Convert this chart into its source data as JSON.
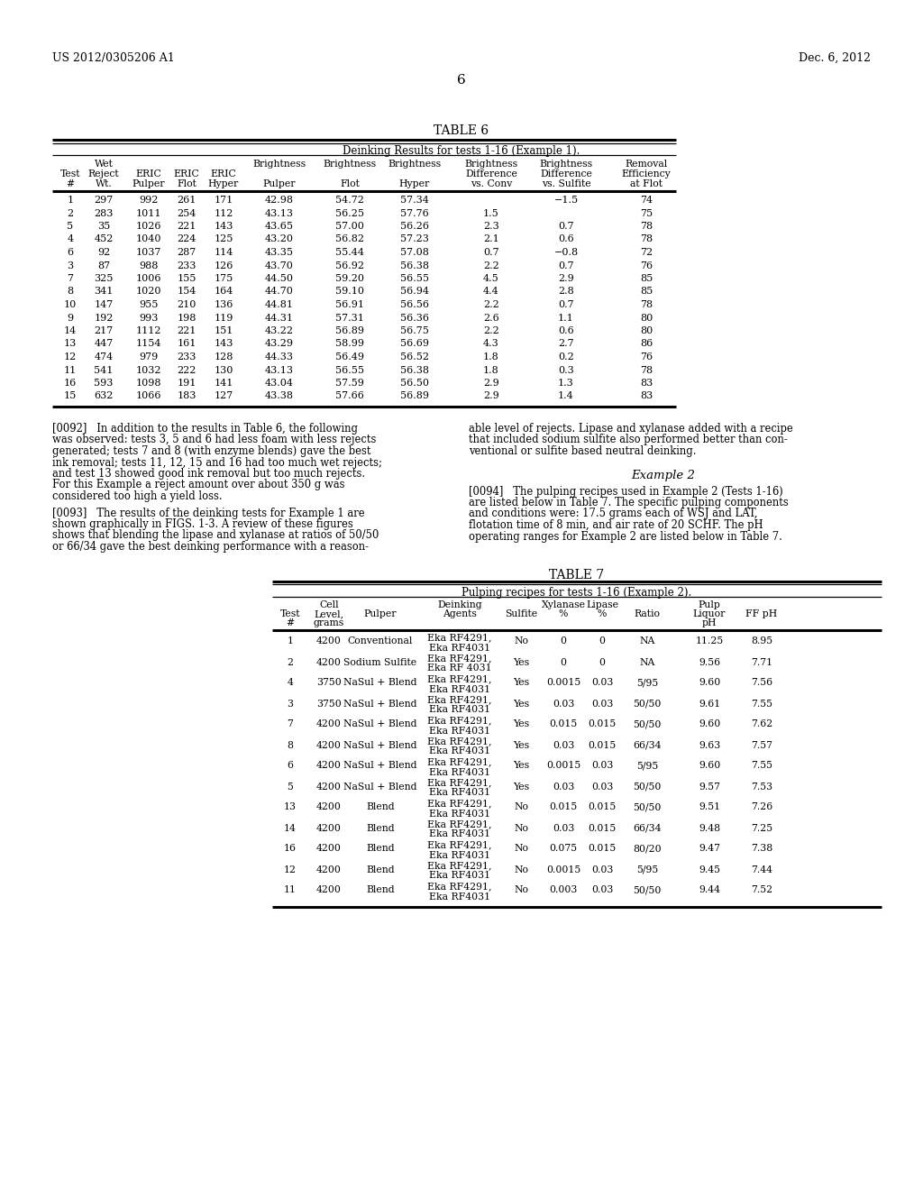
{
  "header_left": "US 2012/0305206 A1",
  "header_right": "Dec. 6, 2012",
  "page_number": "6",
  "table6_title": "TABLE 6",
  "table6_subtitle": "Deinking Results for tests 1-16 (Example 1).",
  "table6_data": [
    [
      "1",
      "297",
      "992",
      "261",
      "171",
      "42.98",
      "54.72",
      "57.34",
      "",
      "−1.5",
      "74"
    ],
    [
      "2",
      "283",
      "1011",
      "254",
      "112",
      "43.13",
      "56.25",
      "57.76",
      "1.5",
      "",
      "75"
    ],
    [
      "5",
      "35",
      "1026",
      "221",
      "143",
      "43.65",
      "57.00",
      "56.26",
      "2.3",
      "0.7",
      "78"
    ],
    [
      "4",
      "452",
      "1040",
      "224",
      "125",
      "43.20",
      "56.82",
      "57.23",
      "2.1",
      "0.6",
      "78"
    ],
    [
      "6",
      "92",
      "1037",
      "287",
      "114",
      "43.35",
      "55.44",
      "57.08",
      "0.7",
      "−0.8",
      "72"
    ],
    [
      "3",
      "87",
      "988",
      "233",
      "126",
      "43.70",
      "56.92",
      "56.38",
      "2.2",
      "0.7",
      "76"
    ],
    [
      "7",
      "325",
      "1006",
      "155",
      "175",
      "44.50",
      "59.20",
      "56.55",
      "4.5",
      "2.9",
      "85"
    ],
    [
      "8",
      "341",
      "1020",
      "154",
      "164",
      "44.70",
      "59.10",
      "56.94",
      "4.4",
      "2.8",
      "85"
    ],
    [
      "10",
      "147",
      "955",
      "210",
      "136",
      "44.81",
      "56.91",
      "56.56",
      "2.2",
      "0.7",
      "78"
    ],
    [
      "9",
      "192",
      "993",
      "198",
      "119",
      "44.31",
      "57.31",
      "56.36",
      "2.6",
      "1.1",
      "80"
    ],
    [
      "14",
      "217",
      "1112",
      "221",
      "151",
      "43.22",
      "56.89",
      "56.75",
      "2.2",
      "0.6",
      "80"
    ],
    [
      "13",
      "447",
      "1154",
      "161",
      "143",
      "43.29",
      "58.99",
      "56.69",
      "4.3",
      "2.7",
      "86"
    ],
    [
      "12",
      "474",
      "979",
      "233",
      "128",
      "44.33",
      "56.49",
      "56.52",
      "1.8",
      "0.2",
      "76"
    ],
    [
      "11",
      "541",
      "1032",
      "222",
      "130",
      "43.13",
      "56.55",
      "56.38",
      "1.8",
      "0.3",
      "78"
    ],
    [
      "16",
      "593",
      "1098",
      "191",
      "141",
      "43.04",
      "57.59",
      "56.50",
      "2.9",
      "1.3",
      "83"
    ],
    [
      "15",
      "632",
      "1066",
      "183",
      "127",
      "43.38",
      "57.66",
      "56.89",
      "2.9",
      "1.4",
      "83"
    ]
  ],
  "left_col_lines_0092": [
    "[0092]   In addition to the results in Table 6, the following",
    "was observed: tests 3, 5 and 6 had less foam with less rejects",
    "generated; tests 7 and 8 (with enzyme blends) gave the best",
    "ink removal; tests 11, 12, 15 and 16 had too much wet rejects;",
    "and test 13 showed good ink removal but too much rejects.",
    "For this Example a reject amount over about 350 g was",
    "considered too high a yield loss."
  ],
  "left_col_lines_0093": [
    "[0093]   The results of the deinking tests for Example 1 are",
    "shown graphically in FIGS. 1-3. A review of these figures",
    "shows that blending the lipase and xylanase at ratios of 50/50",
    "or 66/34 gave the best deinking performance with a reason-"
  ],
  "right_col_lines_1": [
    "able level of rejects. Lipase and xylanase added with a recipe",
    "that included sodium sulfite also performed better than con-",
    "ventional or sulfite based neutral deinking."
  ],
  "example2_heading": "Example 2",
  "right_col_lines_0094": [
    "[0094]   The pulping recipes used in Example 2 (Tests 1-16)",
    "are listed below in Table 7. The specific pulping components",
    "and conditions were: 17.5 grams each of WSJ and LAT,",
    "flotation time of 8 min, and air rate of 20 SCHF. The pH",
    "operating ranges for Example 2 are listed below in Table 7."
  ],
  "table7_title": "TABLE 7",
  "table7_subtitle": "Pulping recipes for tests 1-16 (Example 2).",
  "table7_data": [
    [
      "1",
      "4200",
      "Conventional",
      "Eka RF4291,",
      "Eka RF4031",
      "No",
      "0",
      "0",
      "NA",
      "11.25",
      "8.95"
    ],
    [
      "2",
      "4200",
      "Sodium Sulfite",
      "Eka RF4291,",
      "Eka RF 4031",
      "Yes",
      "0",
      "0",
      "NA",
      "9.56",
      "7.71"
    ],
    [
      "4",
      "3750",
      "NaSul + Blend",
      "Eka RF4291,",
      "Eka RF4031",
      "Yes",
      "0.0015",
      "0.03",
      "5/95",
      "9.60",
      "7.56"
    ],
    [
      "3",
      "3750",
      "NaSul + Blend",
      "Eka RF4291,",
      "Eka RF4031",
      "Yes",
      "0.03",
      "0.03",
      "50/50",
      "9.61",
      "7.55"
    ],
    [
      "7",
      "4200",
      "NaSul + Blend",
      "Eka RF4291,",
      "Eka RF4031",
      "Yes",
      "0.015",
      "0.015",
      "50/50",
      "9.60",
      "7.62"
    ],
    [
      "8",
      "4200",
      "NaSul + Blend",
      "Eka RF4291,",
      "Eka RF4031",
      "Yes",
      "0.03",
      "0.015",
      "66/34",
      "9.63",
      "7.57"
    ],
    [
      "6",
      "4200",
      "NaSul + Blend",
      "Eka RF4291,",
      "Eka RF4031",
      "Yes",
      "0.0015",
      "0.03",
      "5/95",
      "9.60",
      "7.55"
    ],
    [
      "5",
      "4200",
      "NaSul + Blend",
      "Eka RF4291,",
      "Eka RF4031",
      "Yes",
      "0.03",
      "0.03",
      "50/50",
      "9.57",
      "7.53"
    ],
    [
      "13",
      "4200",
      "Blend",
      "Eka RF4291,",
      "Eka RF4031",
      "No",
      "0.015",
      "0.015",
      "50/50",
      "9.51",
      "7.26"
    ],
    [
      "14",
      "4200",
      "Blend",
      "Eka RF4291,",
      "Eka RF4031",
      "No",
      "0.03",
      "0.015",
      "66/34",
      "9.48",
      "7.25"
    ],
    [
      "16",
      "4200",
      "Blend",
      "Eka RF4291,",
      "Eka RF4031",
      "No",
      "0.075",
      "0.015",
      "80/20",
      "9.47",
      "7.38"
    ],
    [
      "12",
      "4200",
      "Blend",
      "Eka RF4291,",
      "Eka RF4031",
      "No",
      "0.0015",
      "0.03",
      "5/95",
      "9.45",
      "7.44"
    ],
    [
      "11",
      "4200",
      "Blend",
      "Eka RF4291,",
      "Eka RF4031",
      "No",
      "0.003",
      "0.03",
      "50/50",
      "9.44",
      "7.52"
    ]
  ],
  "bg": "#ffffff"
}
